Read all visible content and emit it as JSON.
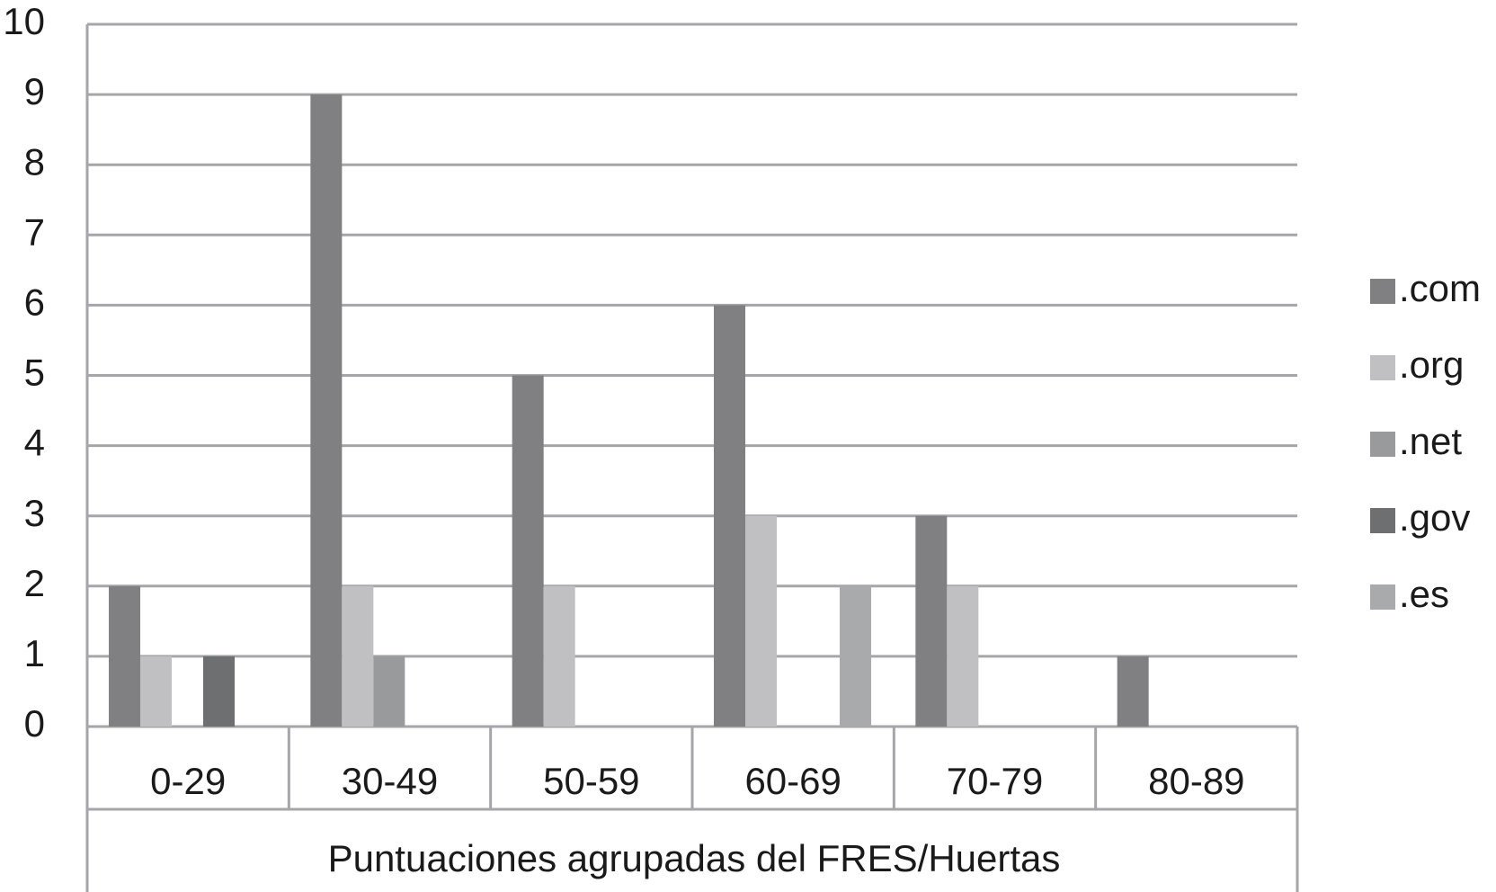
{
  "chart_data": {
    "type": "bar",
    "categories": [
      "0-29",
      "30-49",
      "50-59",
      "60-69",
      "70-79",
      "80-89"
    ],
    "series": [
      {
        "name": ".com",
        "color": "#808083",
        "values": [
          2,
          9,
          5,
          6,
          3,
          1
        ]
      },
      {
        "name": ".org",
        "color": "#c0c0c2",
        "values": [
          1,
          2,
          2,
          3,
          2,
          0
        ]
      },
      {
        "name": ".net",
        "color": "#999a9c",
        "values": [
          0,
          1,
          0,
          0,
          0,
          0
        ]
      },
      {
        "name": ".gov",
        "color": "#6e6f71",
        "values": [
          1,
          0,
          0,
          0,
          0,
          0
        ]
      },
      {
        "name": ".es",
        "color": "#a9aaac",
        "values": [
          0,
          0,
          0,
          2,
          0,
          0
        ]
      }
    ],
    "xlabel": "Puntuaciones agrupadas del FRES/Huertas",
    "ylim": [
      0,
      10
    ],
    "yticks": [
      0,
      1,
      2,
      3,
      4,
      5,
      6,
      7,
      8,
      9,
      10
    ],
    "grid": true,
    "legend": "right"
  }
}
